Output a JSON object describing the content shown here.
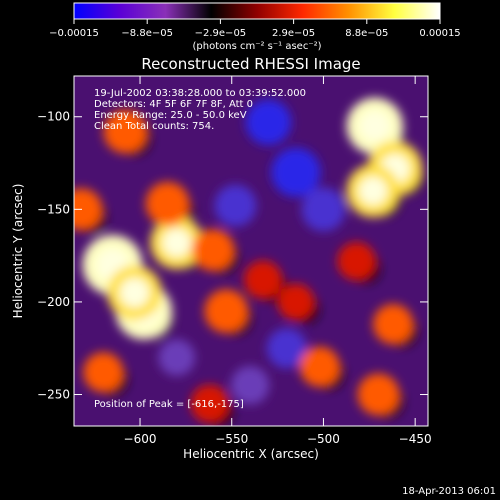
{
  "chart_data": {
    "type": "heatmap",
    "title": "Reconstructed RHESSI Image",
    "xlabel": "Heliocentric X (arcsec)",
    "ylabel": "Heliocentric Y (arcsec)",
    "xlim": [
      -636,
      -443
    ],
    "ylim": [
      -267,
      -78
    ],
    "x_ticks": [
      -600,
      -550,
      -500,
      -450
    ],
    "x_tick_labels": [
      "−600",
      "−550",
      "−500",
      "−450"
    ],
    "y_ticks": [
      -250,
      -200,
      -150,
      -100
    ],
    "y_tick_labels": [
      "−250",
      "−200",
      "−150",
      "−100"
    ],
    "colorbar": {
      "range": [
        -0.00015,
        0.00015
      ],
      "tick_labels": [
        "−0.00015",
        "−8.8e−05",
        "−2.9e−05",
        "2.9e−05",
        "8.8e−05",
        "0.00015"
      ],
      "units_label": "(photons cm⁻² s⁻¹ asec⁻²)",
      "colors": [
        "#0000ff",
        "#5a00d6",
        "#8a30b8",
        "#000000",
        "#900000",
        "#ff2800",
        "#ff9000",
        "#ffff40",
        "#ffffff"
      ]
    },
    "annotations": [
      "19-Jul-2002 03:38:28.000 to 03:39:52.000",
      "Detectors: 4F 5F 6F 7F 8F, Att 0",
      "Energy Range: 25.0 - 50.0 keV",
      "Clean    Total counts: 754."
    ],
    "peak_label": "Position of Peak = [-616,-175]",
    "footer_date": "18-Apr-2013 06:01",
    "peak_position": [
      -616,
      -175
    ],
    "bright_regions": [
      {
        "x": -615,
        "y": -180,
        "level": 1.0
      },
      {
        "x": -598,
        "y": -205,
        "level": 0.9
      },
      {
        "x": -603,
        "y": -195,
        "level": 0.85
      },
      {
        "x": -580,
        "y": -168,
        "level": 0.8
      },
      {
        "x": -472,
        "y": -105,
        "level": 0.9
      },
      {
        "x": -461,
        "y": -128,
        "level": 0.85
      },
      {
        "x": -473,
        "y": -140,
        "level": 0.8
      },
      {
        "x": -585,
        "y": -147,
        "level": 0.55
      },
      {
        "x": -608,
        "y": -108,
        "level": 0.55
      },
      {
        "x": -632,
        "y": -150,
        "level": 0.5
      },
      {
        "x": -502,
        "y": -235,
        "level": 0.45
      },
      {
        "x": -462,
        "y": -212,
        "level": 0.45
      },
      {
        "x": -482,
        "y": -178,
        "level": 0.4
      },
      {
        "x": -562,
        "y": -255,
        "level": 0.4
      },
      {
        "x": -470,
        "y": -250,
        "level": 0.5
      },
      {
        "x": -560,
        "y": -172,
        "level": 0.5
      },
      {
        "x": -553,
        "y": -205,
        "level": 0.55
      },
      {
        "x": -533,
        "y": -188,
        "level": 0.4
      },
      {
        "x": -620,
        "y": -238,
        "level": 0.45
      },
      {
        "x": -515,
        "y": -200,
        "level": 0.35
      }
    ],
    "dim_regions": [
      {
        "x": -515,
        "y": -130,
        "level": -0.7
      },
      {
        "x": -530,
        "y": -103,
        "level": -0.6
      },
      {
        "x": -548,
        "y": -148,
        "level": -0.5
      },
      {
        "x": -500,
        "y": -150,
        "level": -0.55
      },
      {
        "x": -520,
        "y": -225,
        "level": -0.45
      },
      {
        "x": -540,
        "y": -245,
        "level": -0.4
      },
      {
        "x": -580,
        "y": -230,
        "level": -0.35
      }
    ]
  }
}
